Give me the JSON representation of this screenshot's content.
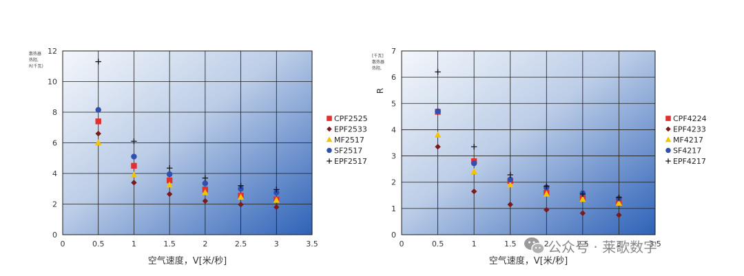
{
  "chart_data": [
    {
      "type": "scatter",
      "xlabel": "空气速度，V[米/秒]",
      "ylabel_lines": [
        "散热器",
        "热阻,",
        "R(千瓦)"
      ],
      "xlim": [
        0,
        3.5
      ],
      "ylim": [
        0,
        12
      ],
      "x_ticks": [
        "0",
        "0.5",
        "1",
        "1.5",
        "2",
        "2.5",
        "3",
        "3.5"
      ],
      "y_ticks": [
        "0",
        "2",
        "4",
        "6",
        "8",
        "10",
        "12"
      ],
      "grid": true,
      "legend_position": "right",
      "series": [
        {
          "name": "CPF2525",
          "marker": "square",
          "color": "#e03030",
          "x": [
            0.5,
            1.0,
            1.5,
            2.0,
            2.5,
            3.0
          ],
          "y": [
            7.4,
            4.5,
            3.55,
            2.95,
            2.55,
            2.3
          ]
        },
        {
          "name": "EPF2533",
          "marker": "diamond",
          "color": "#7a1a1a",
          "x": [
            0.5,
            1.0,
            1.5,
            2.0,
            2.5,
            3.0
          ],
          "y": [
            6.6,
            3.4,
            2.65,
            2.2,
            1.97,
            1.8
          ]
        },
        {
          "name": "MF2517",
          "marker": "triangle",
          "color": "#f5c400",
          "x": [
            0.5,
            1.0,
            1.5,
            2.0,
            2.5,
            3.0
          ],
          "y": [
            6.0,
            3.9,
            3.25,
            2.75,
            2.45,
            2.25
          ]
        },
        {
          "name": "SF2517",
          "marker": "circle",
          "color": "#3050b0",
          "x": [
            0.5,
            1.0,
            1.5,
            2.0,
            2.5,
            3.0
          ],
          "y": [
            8.15,
            5.1,
            3.95,
            3.35,
            3.0,
            2.75
          ]
        },
        {
          "name": "EPF2517",
          "marker": "plus",
          "color": "#111111",
          "x": [
            0.5,
            1.0,
            1.5,
            2.0,
            2.5,
            3.0
          ],
          "y": [
            11.3,
            6.1,
            4.35,
            3.7,
            3.2,
            2.95
          ]
        }
      ]
    },
    {
      "type": "scatter",
      "xlabel": "空气速度，V[米/秒]",
      "ylabel_lines": [
        "[千瓦]",
        "散热器",
        "热阻,"
      ],
      "ylabel_big": "R",
      "xlim": [
        0,
        3.5
      ],
      "ylim": [
        0,
        7
      ],
      "x_ticks": [
        "0",
        "0.5",
        "1",
        "1.5",
        "2",
        "2.5",
        "3",
        "3.5"
      ],
      "y_ticks": [
        "0",
        "1",
        "2",
        "3",
        "4",
        "5",
        "6",
        "7"
      ],
      "grid": true,
      "legend_position": "right",
      "series": [
        {
          "name": "CPF4224",
          "marker": "square",
          "color": "#e03030",
          "x": [
            0.5,
            1.0,
            1.5,
            2.0,
            2.5,
            3.0
          ],
          "y": [
            4.68,
            2.8,
            2.05,
            1.6,
            1.4,
            1.25
          ]
        },
        {
          "name": "EPF4233",
          "marker": "diamond",
          "color": "#7a1a1a",
          "x": [
            0.5,
            1.0,
            1.5,
            2.0,
            2.5,
            3.0
          ],
          "y": [
            3.35,
            1.65,
            1.15,
            0.95,
            0.82,
            0.75
          ]
        },
        {
          "name": "MF4217",
          "marker": "triangle",
          "color": "#f5c400",
          "x": [
            0.5,
            1.0,
            1.5,
            2.0,
            2.5,
            3.0
          ],
          "y": [
            3.8,
            2.4,
            1.9,
            1.55,
            1.35,
            1.2
          ]
        },
        {
          "name": "SF4217",
          "marker": "circle",
          "color": "#3050b0",
          "x": [
            0.5,
            1.0,
            1.5,
            2.0,
            2.5,
            3.0
          ],
          "y": [
            4.7,
            2.72,
            2.1,
            1.8,
            1.58,
            1.38
          ]
        },
        {
          "name": "EPF4217",
          "marker": "plus",
          "color": "#111111",
          "x": [
            0.5,
            1.0,
            1.5,
            2.0,
            2.5,
            3.0
          ],
          "y": [
            6.2,
            3.35,
            2.28,
            1.85,
            1.55,
            1.42
          ]
        }
      ]
    }
  ],
  "watermark": {
    "text": "公众号 · 莱歌数字",
    "icon": "wechat-icon"
  }
}
